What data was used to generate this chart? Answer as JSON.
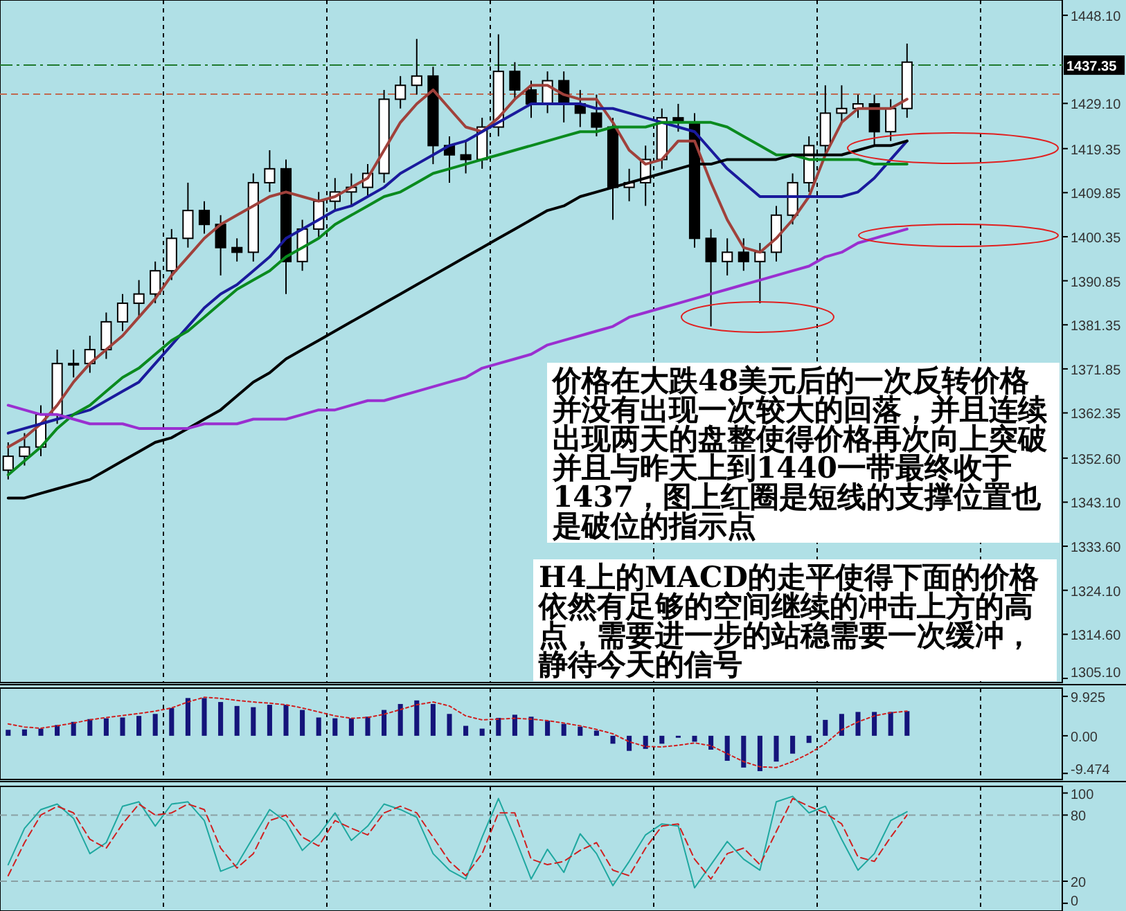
{
  "chart_data": [
    {
      "type": "candlestick",
      "categories": [
        null,
        null,
        null,
        null,
        null,
        null,
        null,
        null,
        null,
        null,
        null,
        null,
        null,
        null,
        null,
        null,
        null,
        null,
        null,
        null,
        null,
        null,
        null,
        null,
        null,
        null,
        null,
        null,
        null,
        null,
        null,
        null,
        null,
        null,
        null,
        null,
        null,
        null,
        null,
        null,
        null,
        null,
        null,
        null,
        null,
        null,
        null,
        null,
        null,
        null,
        null,
        null,
        null,
        null,
        null,
        null,
        null,
        null,
        null,
        null,
        null,
        null,
        null,
        null,
        null
      ],
      "ohlc": [
        [
          1350,
          1356,
          1348,
          1353
        ],
        [
          1353,
          1358,
          1351,
          1355
        ],
        [
          1355,
          1364,
          1353,
          1362
        ],
        [
          1362,
          1376,
          1360,
          1373
        ],
        [
          1373,
          1376,
          1370,
          1373
        ],
        [
          1373,
          1379,
          1371,
          1376
        ],
        [
          1376,
          1384,
          1374,
          1382
        ],
        [
          1382,
          1388,
          1380,
          1386
        ],
        [
          1386,
          1391,
          1383,
          1388
        ],
        [
          1388,
          1395,
          1386,
          1393
        ],
        [
          1393,
          1402,
          1391,
          1400
        ],
        [
          1400,
          1412,
          1398,
          1406
        ],
        [
          1406,
          1408,
          1401,
          1403
        ],
        [
          1403,
          1405,
          1392,
          1398
        ],
        [
          1398,
          1400,
          1395,
          1397
        ],
        [
          1397,
          1414,
          1395,
          1412
        ],
        [
          1412,
          1419,
          1410,
          1415
        ],
        [
          1415,
          1417,
          1388,
          1395
        ],
        [
          1395,
          1404,
          1393,
          1402
        ],
        [
          1402,
          1410,
          1400,
          1408
        ],
        [
          1408,
          1413,
          1406,
          1410
        ],
        [
          1410,
          1414,
          1407,
          1411
        ],
        [
          1411,
          1416,
          1409,
          1414
        ],
        [
          1414,
          1432,
          1412,
          1430
        ],
        [
          1430,
          1435,
          1428,
          1433
        ],
        [
          1433,
          1443,
          1431,
          1435
        ],
        [
          1435,
          1437,
          1416,
          1420
        ],
        [
          1420,
          1422,
          1412,
          1418
        ],
        [
          1418,
          1421,
          1414,
          1417
        ],
        [
          1417,
          1426,
          1415,
          1424
        ],
        [
          1424,
          1444,
          1422,
          1436
        ],
        [
          1436,
          1438,
          1430,
          1432
        ],
        [
          1432,
          1434,
          1426,
          1429
        ],
        [
          1429,
          1436,
          1427,
          1434
        ],
        [
          1434,
          1436,
          1425,
          1429
        ],
        [
          1429,
          1432,
          1424,
          1427
        ],
        [
          1427,
          1431,
          1422,
          1424
        ],
        [
          1424,
          1426,
          1404,
          1411
        ],
        [
          1411,
          1415,
          1408,
          1412
        ],
        [
          1412,
          1420,
          1407,
          1417
        ],
        [
          1417,
          1428,
          1415,
          1426
        ],
        [
          1426,
          1429,
          1423,
          1425
        ],
        [
          1425,
          1427,
          1398,
          1400
        ],
        [
          1400,
          1402,
          1381,
          1395
        ],
        [
          1395,
          1400,
          1392,
          1397
        ],
        [
          1397,
          1400,
          1393,
          1395
        ],
        [
          1395,
          1399,
          1386,
          1397
        ],
        [
          1397,
          1407,
          1395,
          1405
        ],
        [
          1405,
          1414,
          1403,
          1412
        ],
        [
          1412,
          1422,
          1410,
          1420
        ],
        [
          1420,
          1433,
          1418,
          1427
        ],
        [
          1427,
          1433,
          1425,
          1428
        ],
        [
          1428,
          1431,
          1426,
          1429
        ],
        [
          1429,
          1431,
          1420,
          1423
        ],
        [
          1423,
          1430,
          1421,
          1428
        ],
        [
          1428,
          1442,
          1426,
          1438
        ],
        null,
        null,
        null,
        null,
        null,
        null,
        null,
        null,
        null
      ],
      "series": [
        {
          "type": "line",
          "color": "#a0413b",
          "values": [
            1355,
            1357,
            1360,
            1364,
            1369,
            1373,
            1376,
            1379,
            1383,
            1387,
            1392,
            1396,
            1400,
            1403,
            1405,
            1407,
            1409,
            1410,
            1409,
            1408,
            1409,
            1411,
            1413,
            1419,
            1425,
            1429,
            1432,
            1428,
            1424,
            1423,
            1426,
            1430,
            1433,
            1433,
            1431,
            1430,
            1430,
            1425,
            1419,
            1416,
            1417,
            1421,
            1421,
            1412,
            1404,
            1398,
            1397,
            1400,
            1404,
            1409,
            1418,
            1425,
            1428,
            1428,
            1428,
            1430,
            null,
            null,
            null,
            null,
            null,
            null,
            null,
            null,
            null
          ]
        },
        {
          "type": "line",
          "color": "#1a1a9c",
          "values": [
            1358,
            1359,
            1360,
            1361,
            1362,
            1363,
            1365,
            1367,
            1369,
            1373,
            1377,
            1381,
            1385,
            1388,
            1390,
            1393,
            1396,
            1400,
            1402,
            1404,
            1406,
            1407,
            1409,
            1411,
            1414,
            1416,
            1418,
            1420,
            1421,
            1423,
            1425,
            1427,
            1429,
            1429,
            1429,
            1429,
            1428,
            1428,
            1427,
            1426,
            1425,
            1424,
            1423,
            1419,
            1415,
            1412,
            1409,
            1409,
            1409,
            1409,
            1409,
            1409,
            1410,
            1413,
            1417,
            1421,
            null,
            null,
            null,
            null,
            null,
            null,
            null,
            null,
            null
          ]
        },
        {
          "type": "line",
          "color": "#0a8a1e",
          "values": [
            1349,
            1352,
            1355,
            1359,
            1362,
            1364,
            1367,
            1370,
            1372,
            1375,
            1378,
            1380,
            1383,
            1386,
            1389,
            1391,
            1393,
            1396,
            1398,
            1400,
            1403,
            1405,
            1407,
            1409,
            1410,
            1412,
            1414,
            1415,
            1416,
            1417,
            1418,
            1419,
            1420,
            1421,
            1422,
            1423,
            1423,
            1424,
            1424,
            1424,
            1425,
            1425,
            1425,
            1425,
            1424,
            1422,
            1420,
            1418,
            1418,
            1417,
            1417,
            1417,
            1417,
            1416,
            1416,
            1416,
            null,
            null,
            null,
            null,
            null,
            null,
            null,
            null,
            null
          ]
        },
        {
          "type": "line",
          "color": "#000000",
          "values": [
            1344,
            1344,
            1345,
            1346,
            1347,
            1348,
            1350,
            1352,
            1354,
            1356,
            1357,
            1359,
            1361,
            1363,
            1366,
            1369,
            1371,
            1374,
            1376,
            1378,
            1380,
            1382,
            1384,
            1386,
            1388,
            1390,
            1392,
            1394,
            1396,
            1398,
            1400,
            1402,
            1404,
            1406,
            1407,
            1409,
            1410,
            1411,
            1412,
            1413,
            1414,
            1415,
            1416,
            1416,
            1417,
            1417,
            1417,
            1417,
            1418,
            1418,
            1418,
            1418,
            1419,
            1420,
            1420,
            1421,
            null,
            null,
            null,
            null,
            null,
            null,
            null,
            null,
            null
          ]
        },
        {
          "type": "line",
          "color": "#9a2fd0",
          "values": [
            1364,
            1363,
            1362,
            1362,
            1361,
            1360,
            1360,
            1360,
            1359,
            1359,
            1359,
            1359,
            1360,
            1360,
            1360,
            1361,
            1361,
            1361,
            1362,
            1363,
            1363,
            1364,
            1365,
            1365,
            1366,
            1367,
            1368,
            1369,
            1370,
            1372,
            1373,
            1374,
            1375,
            1377,
            1378,
            1379,
            1380,
            1381,
            1383,
            1384,
            1385,
            1386,
            1387,
            1388,
            1389,
            1390,
            1391,
            1392,
            1393,
            1394,
            1396,
            1397,
            1399,
            1400,
            1401,
            1402,
            null,
            null,
            null,
            null,
            null,
            null,
            null,
            null,
            null
          ]
        }
      ],
      "ylim": [
        1304.2,
        1451.4
      ],
      "yticks": [
        {
          "value": 1448.1,
          "label": "1448.10"
        },
        {
          "value": 1429.1,
          "label": "1429.10"
        },
        1419.35,
        1409.85,
        1400.35,
        1390.85,
        1381.35,
        1371.85,
        1362.35,
        {
          "value": 1352.6,
          "label": "1352.60"
        },
        {
          "value": 1343.1,
          "label": "1343.10"
        },
        {
          "value": 1333.6,
          "label": "1333.60"
        },
        {
          "value": 1324.1,
          "label": "1324.10"
        },
        {
          "value": 1314.6,
          "label": "1314.60"
        },
        {
          "value": 1305.1,
          "label": "1305.10"
        }
      ],
      "ref_lines": [
        {
          "axis": "y",
          "value": 1437.35,
          "label": "1437.35",
          "color": "#1f7a2e",
          "line_style": "dashdot"
        },
        {
          "axis": "y",
          "value": 1431.1,
          "color": "#c06a50",
          "line_style": "dashed"
        }
      ],
      "annotations": [
        "价格在大跌**48**美元后的一次反转价格并没有出现一次较大的回落，并且连续出现两天的盘整使得价格再次向上突破并且与昨天上到**1440**一带最终收于**1437**，图上红圈是短线的支撑位置也是破位的指示点",
        "H4上的MACD的走平使得下面的价格依然有足够的空间继续的冲击上方的高点，需要进一步的站稳需要一次缓冲，静待今天的信号"
      ],
      "grid": "x",
      "tick_labels": "y"
    },
    {
      "type": "bar",
      "categories": [
        null,
        null,
        null,
        null,
        null,
        null,
        null,
        null,
        null,
        null,
        null,
        null,
        null,
        null,
        null,
        null,
        null,
        null,
        null,
        null,
        null,
        null,
        null,
        null,
        null,
        null,
        null,
        null,
        null,
        null,
        null,
        null,
        null,
        null,
        null,
        null,
        null,
        null,
        null,
        null,
        null,
        null,
        null,
        null,
        null,
        null,
        null,
        null,
        null,
        null,
        null,
        null,
        null,
        null,
        null,
        null,
        null,
        null,
        null,
        null,
        null,
        null,
        null,
        null,
        null
      ],
      "series": [
        {
          "type": "bar",
          "color": "#14147a",
          "values": [
            1.5,
            1.6,
            1.8,
            2.7,
            3.5,
            4.2,
            4.4,
            4.6,
            5,
            5.5,
            7,
            9.5,
            9.5,
            8.5,
            7.5,
            7.2,
            7.8,
            7.8,
            6.5,
            4.6,
            4.4,
            4.4,
            4.8,
            6.5,
            8,
            8.9,
            8,
            5.5,
            2.5,
            1.8,
            4.5,
            5.3,
            4.8,
            3.8,
            3,
            2.3,
            1.3,
            -2,
            -3.8,
            -3.3,
            -2,
            -0.5,
            -1.5,
            -3.5,
            -6.3,
            -8,
            -8.9,
            -6.5,
            -4.5,
            -1.8,
            4,
            5.5,
            6,
            6,
            6,
            6.2,
            null,
            null,
            null,
            null,
            null,
            null,
            null,
            null,
            null
          ]
        },
        {
          "type": "line",
          "color": "#d02020",
          "line_style": "dotted",
          "values": [
            3,
            2.2,
            1.9,
            2.5,
            3.2,
            4,
            4.6,
            5.1,
            5.6,
            6.2,
            7,
            8.5,
            9.7,
            9.4,
            8.9,
            8.5,
            8.2,
            7.8,
            7,
            6,
            5,
            4.4,
            4.6,
            5.4,
            6.6,
            7.8,
            8.5,
            7.5,
            5,
            4,
            4.2,
            4.4,
            4.2,
            3.8,
            3.2,
            2.5,
            1.6,
            0.5,
            -1.5,
            -2.7,
            -2.8,
            -2.4,
            -1.8,
            -2.5,
            -4.5,
            -6.5,
            -7.8,
            -8,
            -6.5,
            -4.5,
            -2,
            1.5,
            3.5,
            5,
            5.8,
            6.2,
            null,
            null,
            null,
            null,
            null,
            null,
            null,
            null,
            null
          ]
        }
      ],
      "ylim": [
        -11,
        12
      ],
      "yticks": [
        9.925,
        {
          "value": 0,
          "label": "0.00"
        },
        -9.474
      ],
      "grid": "x",
      "tick_labels": "y"
    },
    {
      "type": "line",
      "categories": [
        null,
        null,
        null,
        null,
        null,
        null,
        null,
        null,
        null,
        null,
        null,
        null,
        null,
        null,
        null,
        null,
        null,
        null,
        null,
        null,
        null,
        null,
        null,
        null,
        null,
        null,
        null,
        null,
        null,
        null,
        null,
        null,
        null,
        null,
        null,
        null,
        null,
        null,
        null,
        null,
        null,
        null,
        null,
        null,
        null,
        null,
        null,
        null,
        null,
        null,
        null,
        null,
        null,
        null,
        null,
        null,
        null,
        null,
        null,
        null,
        null,
        null,
        null,
        null,
        null
      ],
      "series": [
        {
          "color": "#1fa8a0",
          "line_style": "solid",
          "values": [
            35,
            68,
            85,
            90,
            77,
            45,
            55,
            88,
            92,
            70,
            90,
            92,
            75,
            29,
            35,
            60,
            85,
            74,
            48,
            62,
            82,
            57,
            70,
            90,
            85,
            78,
            45,
            30,
            22,
            60,
            95,
            60,
            22,
            49,
            28,
            63,
            45,
            16,
            38,
            62,
            72,
            70,
            14,
            35,
            56,
            40,
            30,
            92,
            97,
            82,
            88,
            58,
            30,
            45,
            75,
            83,
            null,
            null,
            null,
            null,
            null,
            null,
            null,
            null,
            null
          ]
        },
        {
          "color": "#d02020",
          "line_style": "dashed",
          "values": [
            25,
            55,
            80,
            88,
            82,
            58,
            50,
            72,
            90,
            80,
            82,
            90,
            85,
            50,
            32,
            45,
            75,
            80,
            60,
            52,
            75,
            68,
            62,
            82,
            88,
            82,
            60,
            38,
            25,
            45,
            82,
            82,
            40,
            35,
            38,
            48,
            55,
            30,
            25,
            50,
            70,
            72,
            40,
            22,
            45,
            50,
            35,
            65,
            95,
            88,
            82,
            72,
            42,
            38,
            60,
            80,
            null,
            null,
            null,
            null,
            null,
            null,
            null,
            null,
            null
          ]
        }
      ],
      "ylim": [
        -7,
        106
      ],
      "yticks": [
        100,
        80,
        20,
        0
      ],
      "ref_lines": [
        {
          "axis": "y",
          "value": 80,
          "color": "#8aa0a4",
          "line_style": "dashed"
        },
        {
          "axis": "y",
          "value": 20,
          "color": "#8aa0a4",
          "line_style": "dashed"
        }
      ],
      "grid": "x",
      "tick_labels": "y"
    }
  ]
}
